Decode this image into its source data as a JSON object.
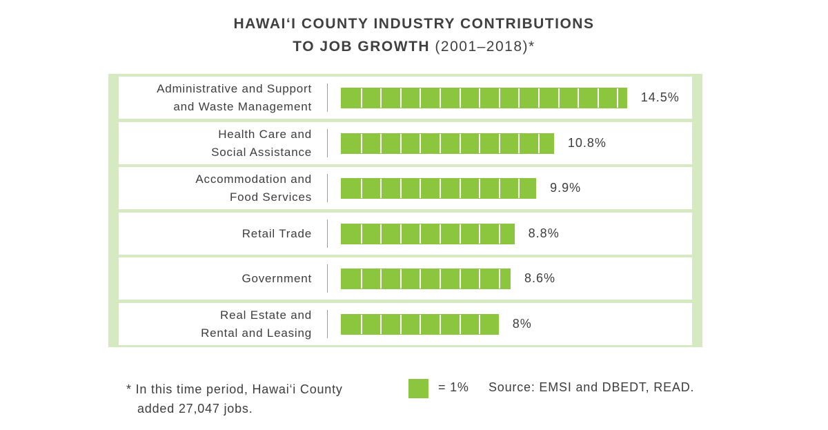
{
  "chart_data": {
    "type": "bar",
    "title_line1": "HAWAI‘I COUNTY INDUSTRY CONTRIBUTIONS",
    "title_line2_main": "TO JOB GROWTH",
    "title_line2_paren": "(2001–2018)*",
    "categories": [
      "Administrative and Support\nand Waste Management",
      "Health Care and\nSocial Assistance",
      "Accommodation and\nFood Services",
      "Retail Trade",
      "Government",
      "Real Estate and\nRental and Leasing"
    ],
    "values": [
      14.5,
      10.8,
      9.9,
      8.8,
      8.6,
      8
    ],
    "value_labels": [
      "14.5%",
      "10.8%",
      "9.9%",
      "8.8%",
      "8.6%",
      "8%"
    ],
    "unit_per_cell": 1,
    "colors": {
      "bar": "#8cc63f",
      "frame": "#d5eac0",
      "text": "#3d3d3d"
    },
    "legend": {
      "label": "= 1%"
    },
    "footnote_line1": "* In this time period, Hawai‘i County",
    "footnote_line2": "added 27,047 jobs.",
    "source": "Source: EMSI and DBEDT, READ."
  }
}
